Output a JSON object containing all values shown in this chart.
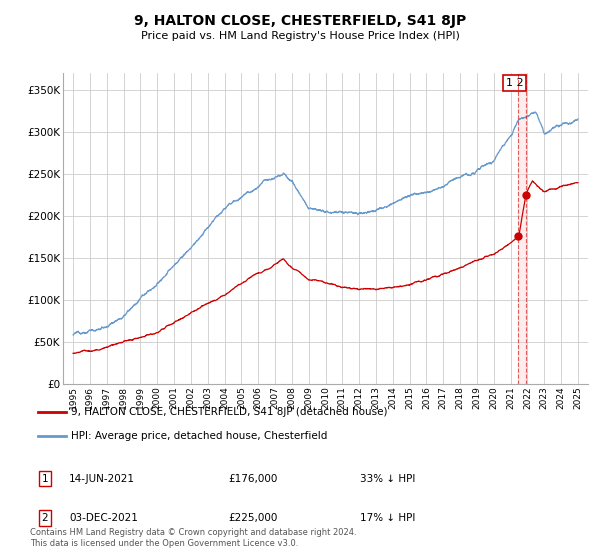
{
  "title": "9, HALTON CLOSE, CHESTERFIELD, S41 8JP",
  "subtitle": "Price paid vs. HM Land Registry's House Price Index (HPI)",
  "ylabel_ticks": [
    "£0",
    "£50K",
    "£100K",
    "£150K",
    "£200K",
    "£250K",
    "£300K",
    "£350K"
  ],
  "ytick_values": [
    0,
    50000,
    100000,
    150000,
    200000,
    250000,
    300000,
    350000
  ],
  "ylim": [
    0,
    370000
  ],
  "legend_line1": "9, HALTON CLOSE, CHESTERFIELD, S41 8JP (detached house)",
  "legend_line2": "HPI: Average price, detached house, Chesterfield",
  "annotation1_label": "1",
  "annotation1_date": "14-JUN-2021",
  "annotation1_price": "£176,000",
  "annotation1_pct": "33% ↓ HPI",
  "annotation2_label": "2",
  "annotation2_date": "03-DEC-2021",
  "annotation2_price": "£225,000",
  "annotation2_pct": "17% ↓ HPI",
  "footer": "Contains HM Land Registry data © Crown copyright and database right 2024.\nThis data is licensed under the Open Government Licence v3.0.",
  "hpi_color": "#6699cc",
  "price_color": "#cc0000",
  "vline_color": "#cc0000",
  "background_color": "#ffffff",
  "grid_color": "#cccccc",
  "sale1_year": 2021.45,
  "sale1_price": 176000,
  "sale2_year": 2021.92,
  "sale2_price": 225000
}
